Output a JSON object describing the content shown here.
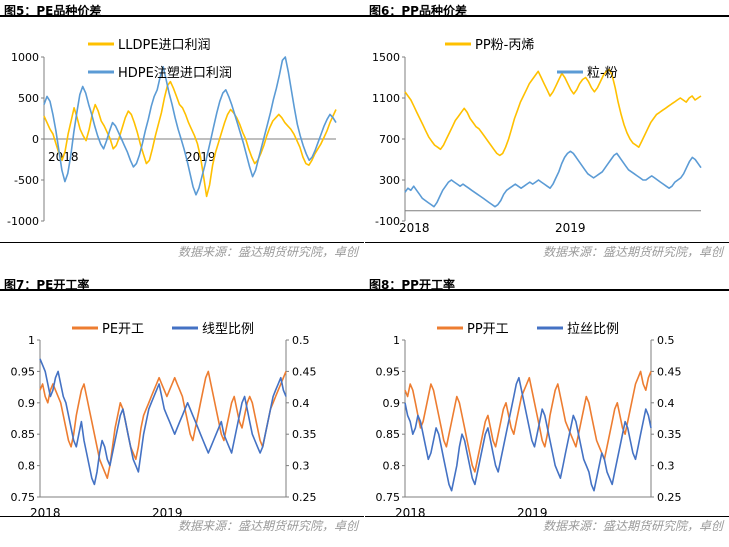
{
  "source_text": "数据来源：盛达期货研究院，卓创",
  "chart_data": [
    {
      "id": "fig5",
      "type": "line",
      "title": "图5：PE品种价差",
      "ylim": [
        -1000,
        1000
      ],
      "yticks": [
        -1000,
        -500,
        0,
        500,
        1000
      ],
      "x_tick_labels": [
        "2018",
        "2019"
      ],
      "legend_position": "top",
      "series": [
        {
          "name": "LLDPE进口利润",
          "color": "#FFC000",
          "axis": "left",
          "values": [
            280,
            200,
            120,
            60,
            -60,
            -180,
            -260,
            -150,
            60,
            220,
            380,
            260,
            120,
            40,
            -20,
            120,
            300,
            420,
            340,
            220,
            160,
            80,
            0,
            -120,
            -80,
            20,
            140,
            260,
            340,
            300,
            200,
            80,
            -60,
            -180,
            -300,
            -260,
            -120,
            40,
            180,
            320,
            500,
            650,
            700,
            620,
            520,
            420,
            380,
            300,
            200,
            120,
            40,
            -60,
            -220,
            -450,
            -700,
            -560,
            -320,
            -160,
            -40,
            80,
            200,
            300,
            360,
            320,
            260,
            180,
            80,
            0,
            -120,
            -220,
            -300,
            -260,
            -180,
            -80,
            40,
            140,
            220,
            260,
            300,
            260,
            200,
            160,
            120,
            60,
            -20,
            -100,
            -220,
            -300,
            -320,
            -260,
            -180,
            -120,
            -60,
            20,
            100,
            200,
            280,
            360
          ]
        },
        {
          "name": "HDPE注塑进口利润",
          "color": "#5B9BD5",
          "axis": "left",
          "values": [
            420,
            520,
            460,
            300,
            100,
            -140,
            -380,
            -520,
            -420,
            -200,
            80,
            320,
            540,
            640,
            560,
            420,
            300,
            160,
            40,
            -60,
            -120,
            -20,
            100,
            200,
            160,
            80,
            0,
            -80,
            -160,
            -260,
            -340,
            -300,
            -200,
            -60,
            100,
            240,
            400,
            520,
            600,
            760,
            880,
            720,
            560,
            420,
            260,
            120,
            0,
            -120,
            -260,
            -420,
            -580,
            -680,
            -600,
            -460,
            -320,
            -160,
            0,
            160,
            320,
            460,
            560,
            600,
            520,
            420,
            300,
            180,
            60,
            -60,
            -200,
            -340,
            -460,
            -380,
            -240,
            -100,
            40,
            180,
            320,
            480,
            620,
            780,
            960,
            1000,
            820,
            600,
            380,
            180,
            40,
            -80,
            -180,
            -260,
            -220,
            -140,
            -40,
            60,
            160,
            240,
            300,
            260,
            200
          ]
        }
      ]
    },
    {
      "id": "fig6",
      "type": "line",
      "title": "图6：PP品种价差",
      "ylim": [
        -100,
        1500
      ],
      "yticks": [
        -100,
        300,
        700,
        1100,
        1500
      ],
      "x_tick_labels": [
        "2018",
        "2019"
      ],
      "legend_position": "top",
      "series": [
        {
          "name": "PP粉-丙烯",
          "color": "#FFC000",
          "axis": "left",
          "values": [
            1160,
            1120,
            1080,
            1020,
            960,
            900,
            840,
            780,
            720,
            680,
            640,
            620,
            600,
            640,
            700,
            760,
            820,
            880,
            920,
            960,
            1000,
            960,
            900,
            860,
            820,
            800,
            760,
            720,
            680,
            640,
            600,
            560,
            540,
            560,
            620,
            700,
            800,
            900,
            980,
            1060,
            1120,
            1180,
            1240,
            1280,
            1320,
            1360,
            1300,
            1240,
            1180,
            1120,
            1160,
            1220,
            1280,
            1340,
            1300,
            1240,
            1180,
            1140,
            1180,
            1240,
            1280,
            1300,
            1260,
            1200,
            1160,
            1200,
            1260,
            1320,
            1360,
            1380,
            1320,
            1200,
            1060,
            940,
            840,
            760,
            700,
            660,
            640,
            620,
            680,
            740,
            800,
            860,
            900,
            940,
            960,
            980,
            1000,
            1020,
            1040,
            1060,
            1080,
            1100,
            1080,
            1060,
            1100,
            1120,
            1080,
            1100,
            1120
          ]
        },
        {
          "name": "粒-粉",
          "color": "#5B9BD5",
          "axis": "left",
          "values": [
            180,
            220,
            200,
            240,
            200,
            160,
            120,
            100,
            80,
            60,
            40,
            80,
            140,
            200,
            240,
            280,
            300,
            280,
            260,
            240,
            260,
            240,
            220,
            200,
            180,
            160,
            140,
            120,
            100,
            80,
            60,
            40,
            60,
            100,
            160,
            200,
            220,
            240,
            260,
            240,
            220,
            240,
            260,
            280,
            260,
            280,
            300,
            280,
            260,
            240,
            220,
            260,
            320,
            380,
            460,
            520,
            560,
            580,
            560,
            520,
            480,
            440,
            400,
            360,
            340,
            320,
            340,
            360,
            380,
            420,
            460,
            500,
            540,
            560,
            520,
            480,
            440,
            400,
            380,
            360,
            340,
            320,
            300,
            300,
            320,
            340,
            320,
            300,
            280,
            260,
            240,
            220,
            240,
            280,
            300,
            320,
            360,
            420,
            480,
            520,
            500,
            460,
            420
          ]
        }
      ]
    },
    {
      "id": "fig7",
      "type": "line",
      "title": "图7：PE开工率",
      "ylim": [
        0.75,
        1.0
      ],
      "yticks": [
        0.75,
        0.8,
        0.85,
        0.9,
        0.95,
        1.0
      ],
      "y2lim": [
        0.25,
        0.5
      ],
      "y2ticks": [
        0.25,
        0.3,
        0.35,
        0.4,
        0.45,
        0.5
      ],
      "x_tick_labels": [
        "2018",
        "2019"
      ],
      "legend_position": "top",
      "series": [
        {
          "name": "PE开工",
          "color": "#ED7D31",
          "axis": "left",
          "values": [
            0.92,
            0.93,
            0.91,
            0.9,
            0.92,
            0.93,
            0.92,
            0.91,
            0.9,
            0.88,
            0.86,
            0.84,
            0.83,
            0.85,
            0.88,
            0.9,
            0.92,
            0.93,
            0.91,
            0.89,
            0.87,
            0.85,
            0.83,
            0.81,
            0.8,
            0.79,
            0.78,
            0.8,
            0.83,
            0.86,
            0.88,
            0.9,
            0.89,
            0.87,
            0.85,
            0.83,
            0.82,
            0.81,
            0.83,
            0.86,
            0.88,
            0.89,
            0.9,
            0.91,
            0.92,
            0.93,
            0.94,
            0.93,
            0.92,
            0.91,
            0.92,
            0.93,
            0.94,
            0.93,
            0.92,
            0.91,
            0.89,
            0.87,
            0.85,
            0.84,
            0.86,
            0.88,
            0.9,
            0.92,
            0.94,
            0.95,
            0.93,
            0.91,
            0.89,
            0.87,
            0.85,
            0.84,
            0.86,
            0.88,
            0.9,
            0.91,
            0.89,
            0.87,
            0.86,
            0.88,
            0.9,
            0.91,
            0.9,
            0.88,
            0.86,
            0.84,
            0.83,
            0.85,
            0.87,
            0.89,
            0.9,
            0.91,
            0.92,
            0.93,
            0.94,
            0.95
          ]
        },
        {
          "name": "线型比例",
          "color": "#4472C4",
          "axis": "right",
          "values": [
            0.47,
            0.46,
            0.45,
            0.43,
            0.41,
            0.42,
            0.44,
            0.45,
            0.43,
            0.41,
            0.4,
            0.38,
            0.36,
            0.34,
            0.33,
            0.35,
            0.37,
            0.34,
            0.32,
            0.3,
            0.28,
            0.27,
            0.29,
            0.32,
            0.34,
            0.33,
            0.31,
            0.3,
            0.32,
            0.34,
            0.36,
            0.38,
            0.39,
            0.37,
            0.35,
            0.33,
            0.31,
            0.3,
            0.29,
            0.32,
            0.35,
            0.37,
            0.39,
            0.4,
            0.41,
            0.42,
            0.43,
            0.41,
            0.39,
            0.38,
            0.37,
            0.36,
            0.35,
            0.36,
            0.37,
            0.38,
            0.39,
            0.4,
            0.39,
            0.38,
            0.37,
            0.36,
            0.35,
            0.34,
            0.33,
            0.32,
            0.33,
            0.34,
            0.35,
            0.36,
            0.37,
            0.35,
            0.34,
            0.33,
            0.32,
            0.34,
            0.36,
            0.38,
            0.4,
            0.41,
            0.39,
            0.37,
            0.35,
            0.34,
            0.33,
            0.32,
            0.33,
            0.35,
            0.37,
            0.39,
            0.41,
            0.42,
            0.43,
            0.44,
            0.42,
            0.41
          ]
        }
      ]
    },
    {
      "id": "fig8",
      "type": "line",
      "title": "图8：PP开工率",
      "ylim": [
        0.75,
        1.0
      ],
      "yticks": [
        0.75,
        0.8,
        0.85,
        0.9,
        0.95,
        1.0
      ],
      "y2lim": [
        0.25,
        0.5
      ],
      "y2ticks": [
        0.25,
        0.3,
        0.35,
        0.4,
        0.45,
        0.5
      ],
      "x_tick_labels": [
        "2018",
        "2019"
      ],
      "legend_position": "top",
      "series": [
        {
          "name": "PP开工",
          "color": "#ED7D31",
          "axis": "left",
          "values": [
            0.92,
            0.91,
            0.93,
            0.92,
            0.9,
            0.88,
            0.86,
            0.87,
            0.89,
            0.91,
            0.93,
            0.92,
            0.9,
            0.88,
            0.86,
            0.84,
            0.83,
            0.85,
            0.87,
            0.89,
            0.91,
            0.9,
            0.88,
            0.86,
            0.84,
            0.82,
            0.8,
            0.79,
            0.81,
            0.83,
            0.85,
            0.87,
            0.88,
            0.86,
            0.84,
            0.83,
            0.85,
            0.87,
            0.89,
            0.9,
            0.88,
            0.86,
            0.85,
            0.87,
            0.89,
            0.91,
            0.92,
            0.93,
            0.94,
            0.92,
            0.9,
            0.88,
            0.86,
            0.84,
            0.83,
            0.85,
            0.88,
            0.9,
            0.92,
            0.93,
            0.91,
            0.89,
            0.87,
            0.86,
            0.85,
            0.84,
            0.83,
            0.85,
            0.87,
            0.89,
            0.91,
            0.9,
            0.88,
            0.86,
            0.84,
            0.83,
            0.82,
            0.81,
            0.83,
            0.85,
            0.87,
            0.89,
            0.9,
            0.88,
            0.86,
            0.85,
            0.87,
            0.89,
            0.91,
            0.93,
            0.94,
            0.95,
            0.93,
            0.92,
            0.94,
            0.95
          ]
        },
        {
          "name": "拉丝比例",
          "color": "#4472C4",
          "axis": "right",
          "values": [
            0.4,
            0.38,
            0.37,
            0.35,
            0.36,
            0.38,
            0.37,
            0.35,
            0.33,
            0.31,
            0.32,
            0.34,
            0.36,
            0.35,
            0.33,
            0.31,
            0.29,
            0.27,
            0.26,
            0.28,
            0.3,
            0.33,
            0.35,
            0.34,
            0.32,
            0.3,
            0.28,
            0.27,
            0.29,
            0.31,
            0.33,
            0.35,
            0.36,
            0.34,
            0.32,
            0.3,
            0.29,
            0.31,
            0.33,
            0.35,
            0.37,
            0.39,
            0.41,
            0.43,
            0.44,
            0.42,
            0.4,
            0.38,
            0.36,
            0.34,
            0.33,
            0.35,
            0.37,
            0.39,
            0.38,
            0.36,
            0.34,
            0.32,
            0.3,
            0.29,
            0.28,
            0.3,
            0.32,
            0.34,
            0.36,
            0.38,
            0.37,
            0.35,
            0.33,
            0.31,
            0.3,
            0.29,
            0.27,
            0.26,
            0.28,
            0.3,
            0.32,
            0.31,
            0.29,
            0.28,
            0.27,
            0.29,
            0.31,
            0.33,
            0.35,
            0.37,
            0.36,
            0.34,
            0.32,
            0.31,
            0.33,
            0.35,
            0.37,
            0.39,
            0.38,
            0.36
          ]
        }
      ]
    }
  ]
}
